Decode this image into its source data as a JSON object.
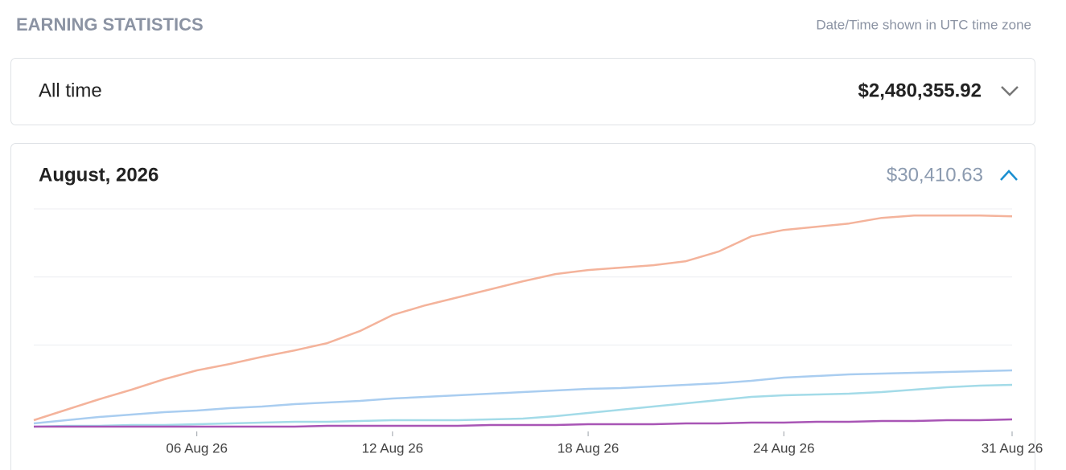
{
  "header": {
    "title": "EARNING STATISTICS",
    "note": "Date/Time shown in UTC time zone"
  },
  "all_time": {
    "label": "All time",
    "total": "$2,480,355.92"
  },
  "month": {
    "label": "August, 2026",
    "total": "$30,410.63"
  },
  "chart_data": {
    "type": "line",
    "categories": [
      null,
      null,
      null,
      null,
      null,
      "06 Aug 26",
      null,
      null,
      null,
      null,
      null,
      "12 Aug 26",
      null,
      null,
      null,
      null,
      null,
      "18 Aug 26",
      null,
      null,
      null,
      null,
      null,
      "24 Aug 26",
      null,
      null,
      null,
      null,
      null,
      null,
      "31 Aug 26"
    ],
    "ylim": [
      0,
      32000
    ],
    "yticks": [
      12000,
      22000,
      32000
    ],
    "grid": true,
    "series": [
      {
        "color": "#f4b39b",
        "values": [
          944,
          2478,
          4012,
          5428,
          6962,
          8260,
          9204,
          10266,
          11210,
          12272,
          14042,
          16402,
          17818,
          18998,
          20178,
          21358,
          22420,
          23010,
          23364,
          23718,
          24308,
          25724,
          27966,
          28910,
          29382,
          29854,
          30680,
          31034,
          31034,
          31034,
          30916
        ]
      },
      {
        "color": "#a9cdf0",
        "values": [
          472,
          944,
          1416,
          1770,
          2124,
          2360,
          2714,
          2950,
          3304,
          3540,
          3776,
          4130,
          4366,
          4602,
          4838,
          5074,
          5310,
          5546,
          5664,
          5900,
          6136,
          6372,
          6726,
          7198,
          7434,
          7670,
          7788,
          7906,
          8024,
          8142,
          8260
        ]
      },
      {
        "color": "#a3dbe8",
        "values": [
          0,
          118,
          118,
          236,
          236,
          354,
          472,
          590,
          708,
          708,
          826,
          944,
          944,
          944,
          1062,
          1180,
          1534,
          2006,
          2478,
          2950,
          3422,
          3894,
          4366,
          4602,
          4720,
          4838,
          5074,
          5428,
          5782,
          6018,
          6136
        ]
      },
      {
        "color": "#a855b5",
        "values": [
          0,
          0,
          0,
          0,
          0,
          0,
          0,
          0,
          0,
          118,
          118,
          118,
          118,
          118,
          236,
          236,
          236,
          354,
          354,
          354,
          472,
          472,
          590,
          590,
          708,
          708,
          826,
          826,
          944,
          944,
          1062
        ]
      }
    ]
  }
}
